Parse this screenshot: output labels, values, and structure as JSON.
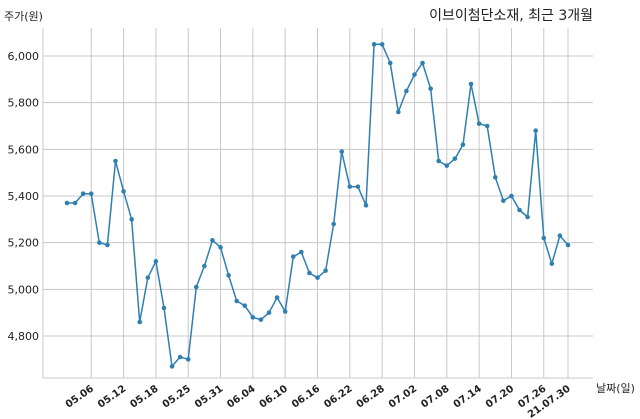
{
  "chart_data": {
    "type": "line",
    "title": "이브이첨단소재, 최근 3개월",
    "ylabel": "주가(원)",
    "xlabel": "날짜(일)",
    "ylim": [
      4620,
      6120
    ],
    "yticks": [
      4800,
      5000,
      5200,
      5400,
      5600,
      5800,
      6000
    ],
    "ytick_labels": [
      "4,800",
      "5,000",
      "5,200",
      "5,400",
      "5,600",
      "5,800",
      "6,000"
    ],
    "xtick_labels": [
      "05.06",
      "05.12",
      "05.18",
      "05.25",
      "05.31",
      "06.04",
      "06.10",
      "06.16",
      "06.22",
      "06.28",
      "07.02",
      "07.08",
      "07.14",
      "07.20",
      "07.26",
      "21.07.30"
    ],
    "xtick_index": [
      3,
      7,
      11,
      15,
      19,
      23,
      27,
      31,
      35,
      39,
      43,
      47,
      51,
      55,
      59,
      62
    ],
    "grid": true,
    "color": "#2f7fb0",
    "series": [
      {
        "values": [
          5370,
          5370,
          5410,
          5410,
          5200,
          5190,
          5550,
          5420,
          5300,
          4860,
          5050,
          5120,
          4920,
          4670,
          4710,
          4700,
          5010,
          5100,
          5210,
          5180,
          5060,
          4950,
          4930,
          4880,
          4870,
          4900,
          4965,
          4905,
          5140,
          5160,
          5070,
          5050,
          5080,
          5280,
          5590,
          5440,
          5440,
          5360,
          6050,
          6050,
          5970,
          5760,
          5850,
          5920,
          5970,
          5860,
          5550,
          5530,
          5560,
          5620,
          5880,
          5710,
          5700,
          5480,
          5380,
          5400,
          5340,
          5310,
          5680,
          5220,
          5110,
          5230,
          5190
        ]
      }
    ]
  }
}
